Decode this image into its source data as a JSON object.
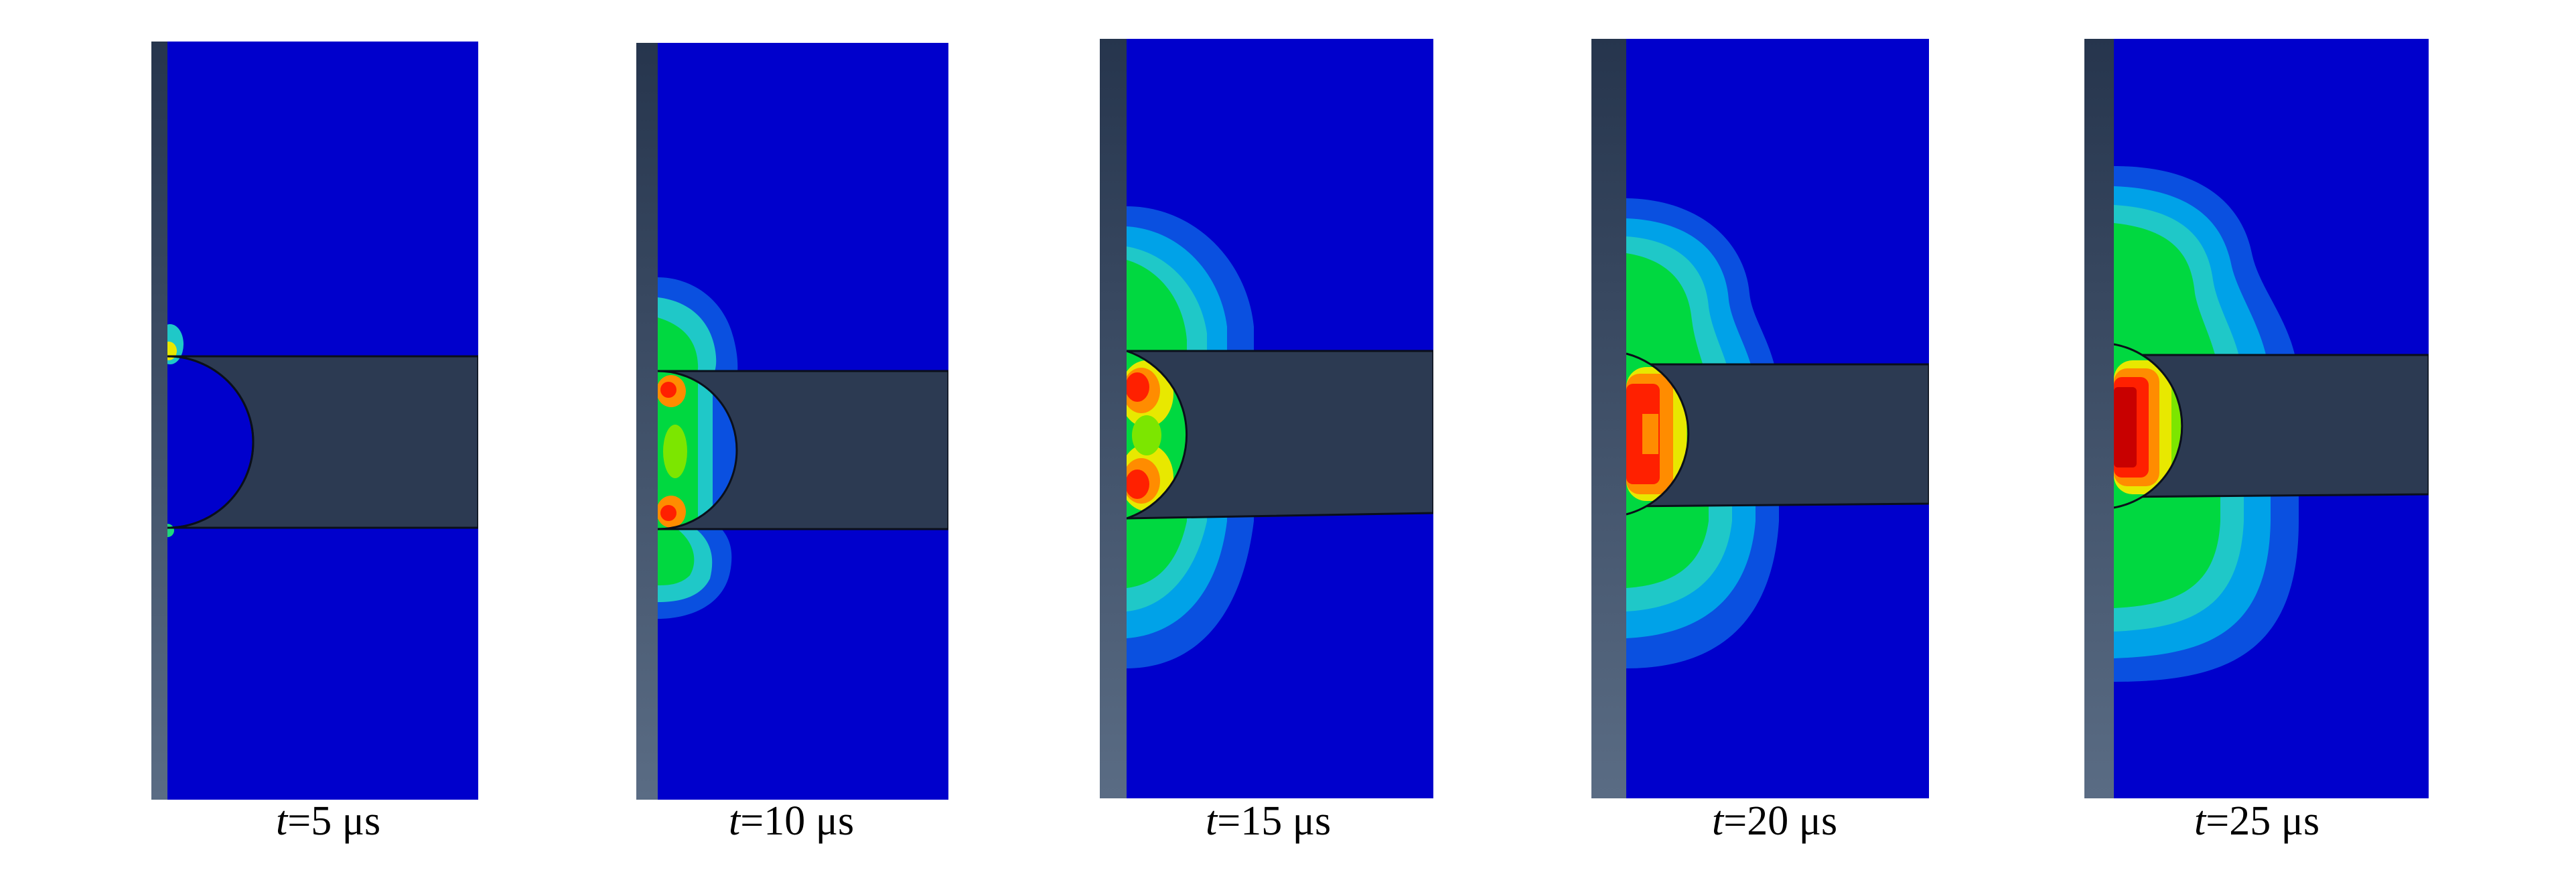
{
  "frames": [
    {
      "id": "t5",
      "t_var": "t",
      "t_rest": "=5 μs"
    },
    {
      "id": "t10",
      "t_var": "t",
      "t_rest": "=10 μs"
    },
    {
      "id": "t15",
      "t_var": "t",
      "t_rest": "=15 μs"
    },
    {
      "id": "t20",
      "t_var": "t",
      "t_rest": "=20 μs"
    },
    {
      "id": "t25",
      "t_var": "t",
      "t_rest": "=25 μs"
    }
  ],
  "colors": {
    "background": "#0000cc",
    "projectile": "#2c3a52",
    "plate_top": "#26354d",
    "plate_bottom": "#5a6c84",
    "contour": [
      "#0000cc",
      "#0a50e0",
      "#00a2e8",
      "#1fc8c8",
      "#1ed77c",
      "#00d840",
      "#7ce600",
      "#e8e800",
      "#ff8c00",
      "#ff2000",
      "#c80000"
    ]
  }
}
